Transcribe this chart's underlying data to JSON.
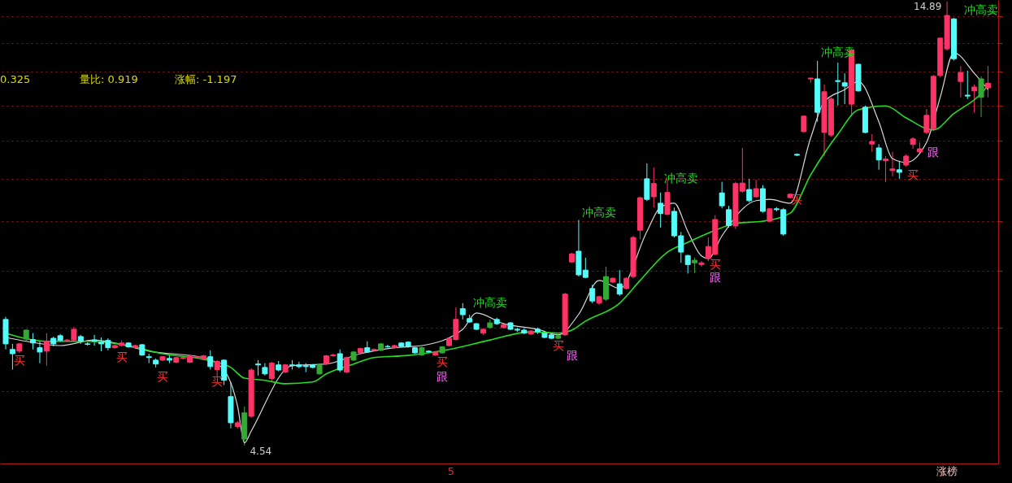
{
  "chart_data": {
    "type": "candlestick",
    "categories": [
      null,
      null,
      null,
      null,
      null,
      null,
      null,
      null,
      null,
      null,
      null,
      null,
      null,
      null,
      null,
      null,
      null,
      null,
      null,
      null,
      null,
      null,
      null,
      null,
      null,
      null,
      null,
      null,
      null,
      null,
      null,
      null,
      null,
      null,
      null,
      null,
      null,
      null,
      null,
      null,
      null,
      null,
      null,
      null,
      null,
      null,
      null,
      null,
      null,
      null,
      null,
      null,
      null,
      null,
      null,
      null,
      null,
      null,
      null,
      null,
      null,
      null,
      null,
      null,
      null,
      null,
      null,
      null,
      null,
      null,
      null,
      null,
      null,
      null,
      null,
      null,
      null,
      null,
      null,
      null,
      null,
      null,
      null,
      null,
      null,
      null,
      null,
      null,
      null,
      null,
      null,
      null,
      null,
      null,
      null,
      null,
      null,
      null,
      null,
      null,
      null,
      null,
      null,
      null,
      null,
      null,
      null,
      null,
      null,
      null,
      null,
      null,
      null,
      null,
      null,
      null,
      null,
      null,
      null,
      null,
      null,
      null,
      null,
      null,
      null,
      null,
      null,
      null,
      null,
      null,
      null,
      null,
      null,
      null,
      null,
      null,
      null,
      null,
      null,
      null,
      null,
      null,
      null,
      null,
      null
    ],
    "ohlc": [
      [
        7.48,
        7.54,
        6.78,
        6.91
      ],
      [
        6.78,
        6.91,
        6.31,
        6.68
      ],
      [
        6.74,
        6.93,
        6.7,
        6.91
      ],
      [
        7.02,
        7.25,
        6.98,
        7.23
      ],
      [
        7.01,
        7.16,
        6.78,
        6.93
      ],
      [
        6.82,
        6.97,
        6.46,
        6.72
      ],
      [
        6.74,
        7.16,
        6.4,
        6.97
      ],
      [
        7.04,
        7.08,
        6.85,
        6.91
      ],
      [
        7.1,
        7.14,
        6.95,
        6.99
      ],
      [
        6.97,
        7.02,
        6.95,
        7.0
      ],
      [
        7.0,
        7.31,
        6.97,
        7.25
      ],
      [
        7.08,
        7.12,
        6.91,
        6.97
      ],
      [
        6.91,
        6.95,
        6.87,
        6.9
      ],
      [
        7.0,
        7.12,
        6.87,
        6.97
      ],
      [
        6.95,
        7.06,
        6.74,
        6.91
      ],
      [
        6.99,
        7.04,
        6.76,
        6.82
      ],
      [
        6.82,
        6.89,
        6.8,
        6.87
      ],
      [
        6.87,
        6.99,
        6.85,
        6.93
      ],
      [
        6.93,
        6.95,
        6.82,
        6.84
      ],
      [
        6.82,
        6.89,
        6.8,
        6.87
      ],
      [
        6.89,
        6.91,
        6.63,
        6.65
      ],
      [
        6.61,
        6.68,
        6.46,
        6.59
      ],
      [
        6.53,
        6.57,
        6.36,
        6.44
      ],
      [
        6.53,
        6.63,
        6.51,
        6.61
      ],
      [
        6.57,
        6.65,
        6.46,
        6.53
      ],
      [
        6.48,
        6.61,
        6.46,
        6.59
      ],
      [
        6.57,
        6.61,
        6.55,
        6.59
      ],
      [
        6.48,
        6.65,
        6.46,
        6.63
      ],
      [
        6.59,
        6.63,
        6.57,
        6.61
      ],
      [
        6.55,
        6.65,
        6.53,
        6.63
      ],
      [
        6.61,
        6.76,
        6.31,
        6.38
      ],
      [
        6.31,
        6.53,
        6.12,
        6.5
      ],
      [
        6.53,
        6.55,
        5.95,
        6.06
      ],
      [
        5.68,
        6.02,
        4.94,
        5.07
      ],
      [
        4.98,
        5.11,
        4.94,
        5.07
      ],
      [
        4.69,
        5.45,
        4.54,
        5.3
      ],
      [
        5.22,
        6.34,
        5.19,
        6.3
      ],
      [
        6.44,
        6.53,
        6.17,
        6.42
      ],
      [
        6.36,
        6.46,
        6.17,
        6.21
      ],
      [
        6.1,
        6.49,
        6.02,
        6.46
      ],
      [
        6.42,
        6.51,
        6.27,
        6.3
      ],
      [
        6.25,
        6.44,
        6.23,
        6.42
      ],
      [
        6.42,
        6.53,
        6.31,
        6.4
      ],
      [
        6.42,
        6.49,
        6.34,
        6.38
      ],
      [
        6.4,
        6.46,
        6.25,
        6.38
      ],
      [
        6.42,
        6.44,
        6.34,
        6.36
      ],
      [
        6.21,
        6.44,
        6.19,
        6.42
      ],
      [
        6.44,
        6.65,
        6.42,
        6.63
      ],
      [
        6.63,
        6.68,
        6.61,
        6.65
      ],
      [
        6.68,
        6.78,
        6.25,
        6.3
      ],
      [
        6.25,
        6.61,
        6.23,
        6.59
      ],
      [
        6.53,
        6.74,
        6.51,
        6.72
      ],
      [
        6.7,
        6.82,
        6.68,
        6.8
      ],
      [
        6.82,
        6.97,
        6.7,
        6.72
      ],
      [
        6.76,
        6.8,
        6.74,
        6.78
      ],
      [
        6.76,
        6.93,
        6.74,
        6.91
      ],
      [
        6.85,
        6.89,
        6.82,
        6.84
      ],
      [
        6.82,
        6.89,
        6.8,
        6.87
      ],
      [
        6.93,
        6.95,
        6.84,
        6.85
      ],
      [
        6.95,
        6.97,
        6.82,
        6.85
      ],
      [
        6.82,
        6.84,
        6.68,
        6.7
      ],
      [
        6.65,
        6.85,
        6.63,
        6.82
      ],
      [
        6.74,
        6.76,
        6.7,
        6.72
      ],
      [
        6.65,
        6.74,
        6.63,
        6.72
      ],
      [
        6.7,
        6.85,
        6.68,
        6.84
      ],
      [
        6.87,
        7.06,
        6.85,
        7.04
      ],
      [
        7.01,
        7.76,
        6.99,
        7.48
      ],
      [
        7.73,
        7.86,
        7.48,
        7.59
      ],
      [
        7.5,
        7.59,
        7.4,
        7.42
      ],
      [
        7.38,
        7.4,
        7.23,
        7.25
      ],
      [
        7.16,
        7.27,
        7.12,
        7.25
      ],
      [
        7.29,
        7.48,
        7.27,
        7.4
      ],
      [
        7.48,
        7.52,
        7.35,
        7.38
      ],
      [
        7.29,
        7.4,
        7.27,
        7.36
      ],
      [
        7.4,
        7.42,
        7.23,
        7.25
      ],
      [
        7.25,
        7.29,
        7.19,
        7.23
      ],
      [
        7.23,
        7.27,
        7.14,
        7.16
      ],
      [
        7.14,
        7.23,
        7.12,
        7.21
      ],
      [
        7.25,
        7.29,
        7.14,
        7.19
      ],
      [
        7.16,
        7.19,
        7.04,
        7.06
      ],
      [
        7.12,
        7.14,
        7.02,
        7.04
      ],
      [
        7.04,
        7.12,
        7.02,
        7.1
      ],
      [
        7.12,
        8.1,
        7.1,
        8.07
      ],
      [
        8.82,
        9.03,
        8.8,
        9.01
      ],
      [
        9.07,
        9.8,
        8.48,
        8.52
      ],
      [
        8.63,
        8.92,
        8.44,
        8.46
      ],
      [
        8.2,
        8.29,
        7.86,
        7.91
      ],
      [
        7.86,
        8.03,
        7.82,
        8.01
      ],
      [
        7.95,
        8.71,
        7.91,
        8.48
      ],
      [
        8.35,
        8.46,
        8.33,
        8.44
      ],
      [
        8.31,
        8.63,
        8.03,
        8.07
      ],
      [
        8.2,
        8.46,
        8.18,
        8.44
      ],
      [
        8.48,
        9.43,
        8.44,
        9.39
      ],
      [
        9.56,
        10.34,
        9.35,
        10.32
      ],
      [
        10.76,
        11.12,
        10.24,
        10.28
      ],
      [
        10.34,
        11.02,
        10.09,
        10.65
      ],
      [
        10.19,
        10.44,
        9.62,
        9.95
      ],
      [
        9.93,
        10.76,
        9.91,
        10.44
      ],
      [
        10.0,
        10.09,
        9.39,
        9.43
      ],
      [
        9.43,
        9.52,
        8.8,
        9.05
      ],
      [
        8.97,
        8.99,
        8.55,
        8.76
      ],
      [
        8.8,
        8.92,
        8.56,
        8.86
      ],
      [
        8.76,
        8.84,
        8.71,
        8.8
      ],
      [
        8.9,
        9.39,
        8.84,
        9.18
      ],
      [
        9.0,
        9.91,
        8.97,
        9.81
      ],
      [
        10.43,
        10.69,
        10.07,
        10.13
      ],
      [
        10.04,
        10.13,
        9.62,
        9.67
      ],
      [
        9.66,
        10.69,
        9.59,
        10.65
      ],
      [
        10.47,
        11.48,
        10.43,
        10.66
      ],
      [
        10.51,
        10.76,
        10.21,
        10.25
      ],
      [
        10.34,
        10.74,
        10.32,
        10.53
      ],
      [
        10.53,
        10.61,
        9.97,
        10.0
      ],
      [
        9.77,
        10.08,
        9.75,
        10.06
      ],
      [
        10.06,
        10.1,
        10.0,
        10.04
      ],
      [
        10.04,
        10.08,
        9.43,
        9.47
      ],
      [
        10.32,
        10.42,
        10.3,
        10.4
      ],
      [
        11.33,
        11.35,
        11.29,
        11.31
      ],
      [
        11.86,
        12.24,
        11.84,
        12.22
      ],
      [
        13.09,
        13.11,
        13.0,
        13.11
      ],
      [
        13.09,
        13.51,
        12.09,
        12.31
      ],
      [
        11.84,
        12.96,
        11.29,
        12.79
      ],
      [
        11.78,
        12.66,
        11.74,
        12.62
      ],
      [
        13.05,
        13.47,
        12.47,
        13.03
      ],
      [
        13.0,
        13.22,
        12.5,
        12.92
      ],
      [
        12.5,
        13.79,
        12.22,
        13.75
      ],
      [
        13.43,
        13.45,
        12.79,
        12.81
      ],
      [
        12.43,
        12.47,
        11.82,
        11.84
      ],
      [
        11.57,
        11.8,
        11.39,
        11.63
      ],
      [
        11.48,
        11.57,
        10.97,
        11.2
      ],
      [
        11.18,
        11.29,
        10.68,
        11.22
      ],
      [
        10.95,
        11.39,
        10.82,
        10.99
      ],
      [
        10.97,
        11.18,
        10.76,
        10.91
      ],
      [
        11.08,
        11.33,
        11.04,
        11.29
      ],
      [
        11.56,
        11.73,
        11.46,
        11.69
      ],
      [
        11.39,
        11.61,
        11.35,
        11.46
      ],
      [
        11.84,
        12.39,
        11.8,
        12.24
      ],
      [
        11.93,
        13.18,
        11.88,
        13.15
      ],
      [
        13.17,
        14.06,
        13.13,
        14.04
      ],
      [
        13.79,
        14.89,
        13.75,
        14.57
      ],
      [
        14.49,
        14.51,
        13.52,
        13.56
      ],
      [
        13.03,
        13.39,
        12.66,
        13.24
      ],
      [
        12.71,
        13.28,
        12.62,
        12.69
      ],
      [
        12.81,
        12.96,
        12.3,
        12.9
      ],
      [
        12.66,
        13.15,
        12.2,
        13.09
      ],
      [
        12.88,
        13.39,
        12.66,
        12.99
      ]
    ],
    "colors": [
      "#54fcfc",
      "#54fcfc",
      "#ff3366",
      "#33aa33",
      "#54fcfc",
      "#54fcfc",
      "#ff3366",
      "#54fcfc",
      "#54fcfc",
      "#ff3366",
      "#ff3366",
      "#54fcfc",
      "#54fcfc",
      "#54fcfc",
      "#54fcfc",
      "#54fcfc",
      "#ff3366",
      "#ff3366",
      "#54fcfc",
      "#ff3366",
      "#54fcfc",
      "#54fcfc",
      "#54fcfc",
      "#ff3366",
      "#54fcfc",
      "#ff3366",
      "#ff3366",
      "#ff3366",
      "#ff3366",
      "#ff3366",
      "#54fcfc",
      "#ff3366",
      "#54fcfc",
      "#54fcfc",
      "#ff3366",
      "#33aa33",
      "#ff3366",
      "#54fcfc",
      "#54fcfc",
      "#ff3366",
      "#54fcfc",
      "#ff3366",
      "#54fcfc",
      "#54fcfc",
      "#54fcfc",
      "#54fcfc",
      "#33aa33",
      "#ff3366",
      "#ff3366",
      "#54fcfc",
      "#ff3366",
      "#33aa33",
      "#ff3366",
      "#54fcfc",
      "#ff3366",
      "#33aa33",
      "#54fcfc",
      "#ff3366",
      "#54fcfc",
      "#54fcfc",
      "#54fcfc",
      "#33aa33",
      "#54fcfc",
      "#ff3366",
      "#33aa33",
      "#ff3366",
      "#ff3366",
      "#54fcfc",
      "#54fcfc",
      "#54fcfc",
      "#ff3366",
      "#33aa33",
      "#54fcfc",
      "#ff3366",
      "#54fcfc",
      "#54fcfc",
      "#54fcfc",
      "#ff3366",
      "#54fcfc",
      "#54fcfc",
      "#54fcfc",
      "#33aa33",
      "#ff3366",
      "#ff3366",
      "#54fcfc",
      "#54fcfc",
      "#54fcfc",
      "#ff3366",
      "#33aa33",
      "#ff3366",
      "#54fcfc",
      "#ff3366",
      "#ff3366",
      "#ff3366",
      "#54fcfc",
      "#ff3366",
      "#54fcfc",
      "#ff3366",
      "#54fcfc",
      "#54fcfc",
      "#54fcfc",
      "#33aa33",
      "#ff3366",
      "#ff3366",
      "#ff3366",
      "#54fcfc",
      "#54fcfc",
      "#ff3366",
      "#ff3366",
      "#54fcfc",
      "#ff3366",
      "#54fcfc",
      "#ff3366",
      "#54fcfc",
      "#54fcfc",
      "#ff3366",
      "#54fcfc",
      "#ff3366",
      "#ff3366",
      "#54fcfc",
      "#ff3366",
      "#ff3366",
      "#54fcfc",
      "#54fcfc",
      "#ff3366",
      "#54fcfc",
      "#54fcfc",
      "#ff3366",
      "#54fcfc",
      "#ff3366",
      "#ff3366",
      "#54fcfc",
      "#ff3366",
      "#ff3366",
      "#ff3366",
      "#ff3366",
      "#ff3366",
      "#ff3366",
      "#ff3366",
      "#54fcfc",
      "#ff3366",
      "#54fcfc",
      "#ff3366",
      "#33aa33",
      "#ff3366"
    ],
    "series": [
      {
        "type": "line",
        "color": "#d8d8d8",
        "values": [
          7.06,
          null,
          null,
          6.97,
          null,
          null,
          null,
          null,
          6.87,
          null,
          null,
          null,
          null,
          7.0,
          null,
          null,
          6.93,
          null,
          null,
          null,
          null,
          6.74,
          null,
          null,
          null,
          null,
          null,
          null,
          null,
          6.59,
          null,
          null,
          6.3,
          null,
          5.45,
          4.6,
          4.88,
          null,
          null,
          null,
          null,
          null,
          6.4,
          null,
          null,
          null,
          null,
          6.44,
          null,
          null,
          null,
          null,
          6.68,
          null,
          null,
          null,
          null,
          6.82,
          null,
          null,
          null,
          6.87,
          null,
          null,
          null,
          null,
          null,
          7.25,
          null,
          7.63,
          null,
          null,
          null,
          7.38,
          null,
          null,
          null,
          null,
          7.25,
          null,
          null,
          7.12,
          null,
          null,
          7.6,
          null,
          null,
          8.39,
          null,
          null,
          8.2,
          null,
          null,
          null,
          9.53,
          null,
          10.1,
          null,
          10.19,
          null,
          9.53,
          null,
          8.96,
          8.9,
          null,
          9.43,
          null,
          null,
          null,
          null,
          10.25,
          null,
          10.28,
          null,
          null,
          10.19,
          null,
          null,
          11.71,
          null,
          12.56,
          null,
          null,
          12.84,
          null,
          13.03,
          null,
          null,
          12.09,
          null,
          11.23,
          null,
          11.14,
          null,
          null,
          11.61,
          null,
          12.66,
          null,
          13.7,
          null,
          null,
          13.22,
          null,
          12.84
        ]
      },
      {
        "type": "line",
        "color": "#22dd22",
        "values": [
          7.16,
          null,
          null,
          null,
          null,
          null,
          6.97,
          null,
          null,
          null,
          null,
          null,
          6.97,
          null,
          null,
          null,
          null,
          null,
          6.87,
          null,
          null,
          null,
          null,
          6.68,
          null,
          null,
          null,
          null,
          null,
          6.55,
          null,
          null,
          null,
          6.36,
          null,
          6.11,
          null,
          null,
          6.06,
          null,
          null,
          5.98,
          null,
          null,
          null,
          6.02,
          null,
          6.21,
          null,
          null,
          null,
          6.44,
          null,
          null,
          6.59,
          null,
          null,
          null,
          null,
          6.64,
          null,
          null,
          null,
          null,
          null,
          6.78,
          null,
          null,
          null,
          null,
          null,
          7.0,
          null,
          null,
          null,
          null,
          null,
          7.19,
          null,
          null,
          null,
          7.16,
          null,
          7.23,
          null,
          7.44,
          null,
          null,
          null,
          null,
          7.86,
          null,
          null,
          8.39,
          null,
          null,
          null,
          9.05,
          null,
          null,
          9.28,
          null,
          null,
          null,
          9.56,
          null,
          null,
          9.72,
          null,
          null,
          null,
          9.77,
          null,
          null,
          null,
          9.96,
          null,
          null,
          10.85,
          null,
          null,
          null,
          11.8,
          null,
          null,
          12.37,
          null,
          null,
          null,
          12.46,
          null,
          null,
          12.18,
          null,
          null,
          null,
          11.9,
          null,
          null,
          12.28,
          null,
          null,
          null,
          12.75,
          12.94
        ]
      }
    ],
    "annotations": [
      "0.325",
      "量比: 0.919",
      "涨幅: -1.197",
      "14.89",
      "4.54",
      "冲高卖",
      "冲高卖",
      "冲高卖",
      "冲高卖",
      "冲高卖",
      "买",
      "买",
      "买",
      "买",
      "买",
      "买",
      "买",
      "买",
      "买",
      "跟",
      "跟",
      "跟",
      "跟",
      "5",
      "涨榜"
    ],
    "ylim": [
      4.12,
      14.93
    ],
    "yticks": [
      {
        "value": 5.8,
        "label": null
      },
      {
        "value": 7.29,
        "label": null
      },
      {
        "value": 8.61,
        "label": null
      },
      {
        "value": 9.77,
        "label": null
      },
      {
        "value": 10.76,
        "label": null
      },
      {
        "value": 11.65,
        "label": null
      },
      {
        "value": 12.46,
        "label": null
      },
      {
        "value": 13.26,
        "label": null
      },
      {
        "value": 13.93,
        "label": null
      },
      {
        "value": 14.55,
        "label": null
      }
    ],
    "grid": "y"
  }
}
